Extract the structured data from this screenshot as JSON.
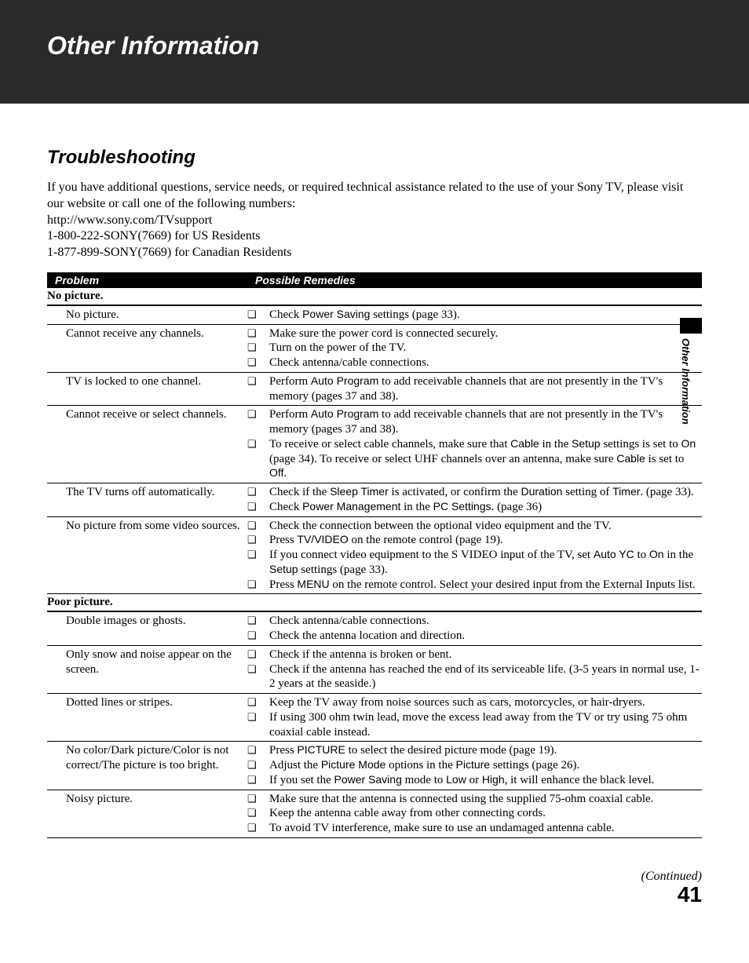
{
  "header": {
    "title": "Other Information"
  },
  "section": {
    "title": "Troubleshooting"
  },
  "intro": {
    "line1": "If you have additional questions, service needs, or required technical assistance related to the use of your Sony TV, please visit our website or call one of the following numbers:",
    "line2": "http://www.sony.com/TVsupport",
    "line3": "1-800-222-SONY(7669) for US Residents",
    "line4": "1-877-899-SONY(7669) for Canadian Residents"
  },
  "table_header": {
    "problem": "Problem",
    "remedies": "Possible Remedies"
  },
  "cat1": "No picture.",
  "r1": {
    "p": "No picture.",
    "a1_pre": "Check ",
    "a1_sans": "Power Saving",
    "a1_post": " settings (page 33)."
  },
  "r2": {
    "p": "Cannot receive any channels.",
    "a1": "Make sure the power cord is connected securely.",
    "a2": "Turn on the power of the TV.",
    "a3": "Check antenna/cable connections."
  },
  "r3": {
    "p": "TV is locked to one channel.",
    "a1_pre": "Perform ",
    "a1_sans": "Auto Program",
    "a1_post": " to add receivable channels that are not presently in the TV's memory (pages 37 and 38)."
  },
  "r4": {
    "p": "Cannot receive or select channels.",
    "a1_pre": "Perform ",
    "a1_sans": "Auto Program",
    "a1_post": " to add receivable channels that are not presently in the TV's memory (pages 37 and 38).",
    "a2_0": "To receive or select cable channels, make sure that ",
    "a2_1": "Cable",
    "a2_2": " in the ",
    "a2_3": "Setup",
    "a2_4": " settings is set to ",
    "a2_5": "On",
    "a2_6": " (page 34). To receive or select UHF channels over an antenna, make sure ",
    "a2_7": "Cable",
    "a2_8": " is set to ",
    "a2_9": "Off",
    "a2_10": "."
  },
  "r5": {
    "p": "The TV turns off automatically.",
    "a1_0": "Check if the ",
    "a1_1": "Sleep Timer",
    "a1_2": " is activated, or confirm the ",
    "a1_3": "Duration",
    "a1_4": " setting of ",
    "a1_5": "Timer",
    "a1_6": ". (page 33).",
    "a2_0": "Check ",
    "a2_1": "Power Management",
    "a2_2": " in the ",
    "a2_3": "PC Settings",
    "a2_4": ". (page 36)"
  },
  "r6": {
    "p": "No picture from some video sources.",
    "a1": "Check the connection between the optional video equipment and the TV.",
    "a2_0": "Press ",
    "a2_1": "TV/VIDEO",
    "a2_2": " on the remote control (page 19).",
    "a3_0": "If you connect video equipment to the S VIDEO input of the TV, set ",
    "a3_1": "Auto YC",
    "a3_2": " to ",
    "a3_3": "On",
    "a3_4": " in the ",
    "a3_5": "Setup",
    "a3_6": " settings (page 33).",
    "a4_0": "Press ",
    "a4_1": "MENU",
    "a4_2": " on the remote control. Select your desired input from the External Inputs list."
  },
  "cat2": "Poor picture.",
  "r7": {
    "p": "Double images or ghosts.",
    "a1": "Check antenna/cable connections.",
    "a2": "Check the antenna location and direction."
  },
  "r8": {
    "p": "Only snow and noise appear on the screen.",
    "a1": "Check if the antenna is broken or bent.",
    "a2": "Check if the antenna has reached the end of its serviceable life. (3-5 years in normal use, 1-2 years at the seaside.)"
  },
  "r9": {
    "p": "Dotted lines or stripes.",
    "a1": "Keep the TV away from noise sources such as cars, motorcycles, or hair-dryers.",
    "a2": "If using 300 ohm twin lead, move the excess lead away from the TV or try using 75 ohm coaxial cable instead."
  },
  "r10": {
    "p": "No color/Dark picture/Color is not correct/The picture is too bright.",
    "a1_0": "Press ",
    "a1_1": "PICTURE",
    "a1_2": " to select the desired picture mode (page 19).",
    "a2_0": "Adjust the ",
    "a2_1": "Picture Mode",
    "a2_2": " options in the ",
    "a2_3": "Picture",
    "a2_4": " settings (page 26).",
    "a3_0": "If you set the ",
    "a3_1": "Power Saving",
    "a3_2": " mode to ",
    "a3_3": "Low",
    "a3_4": " or ",
    "a3_5": "High",
    "a3_6": ", it will enhance the black level."
  },
  "r11": {
    "p": "Noisy picture.",
    "a1": "Make sure that the antenna is connected using the supplied 75-ohm coaxial cable.",
    "a2": "Keep the antenna cable away from other connecting cords.",
    "a3": "To avoid TV interference, make sure to use an undamaged antenna cable."
  },
  "side_tab": "Other Information",
  "footer": {
    "continued": "(Continued)",
    "page": "41"
  }
}
